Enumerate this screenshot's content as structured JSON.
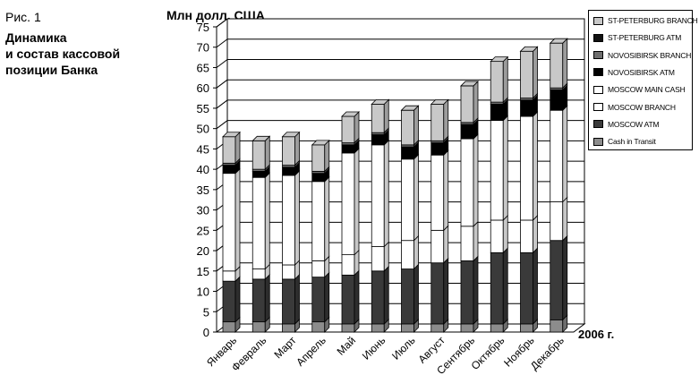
{
  "figure": {
    "label": "Рис. 1",
    "caption": "Динамика\nи состав кассовой\nпозиции Банка"
  },
  "chart_data": {
    "type": "bar",
    "stacked": true,
    "ylabel": "Млн долл. США",
    "xlabel": "2006 г.",
    "ylim": [
      0,
      75
    ],
    "yticks": [
      0,
      5,
      10,
      15,
      20,
      25,
      30,
      35,
      40,
      45,
      50,
      55,
      60,
      65,
      70,
      75
    ],
    "grid": true,
    "legend_position": "top-right",
    "categories": [
      "Январь",
      "Февраль",
      "Март",
      "Апрель",
      "Май",
      "Июнь",
      "Июль",
      "Август",
      "Сентябрь",
      "Октябрь",
      "Ноябрь",
      "Декабрь"
    ],
    "series": [
      {
        "name": "Cash in Transit",
        "color": "#8c8c8c",
        "values": [
          2.5,
          2.5,
          2,
          2.5,
          2,
          2,
          2,
          2,
          2,
          2,
          2,
          3
        ]
      },
      {
        "name": "MOSCOW ATM",
        "color": "#3a3a3a",
        "values": [
          10,
          10.5,
          11,
          11,
          12,
          13,
          13.5,
          15,
          15.5,
          17.5,
          17.5,
          19.5
        ]
      },
      {
        "name": "MOSCOW BRANCH",
        "color": "#ffffff",
        "values": [
          2.5,
          2.5,
          3.5,
          4,
          5,
          6,
          7,
          8,
          8.5,
          8,
          8,
          9.5
        ]
      },
      {
        "name": "MOSCOW MAIN CASH",
        "color": "#ffffff",
        "values": [
          24,
          22.5,
          22,
          19.5,
          25,
          25,
          20,
          18.5,
          21.5,
          24.5,
          25.5,
          22.5
        ]
      },
      {
        "name": "NOVOSIBIRSK ATM",
        "color": "#000000",
        "values": [
          2,
          1.5,
          2,
          2,
          2,
          2.5,
          3,
          3,
          3.5,
          4,
          4,
          5
        ]
      },
      {
        "name": "NOVOSIBIRSK BRANCH",
        "color": "#6e6e6e",
        "values": [
          0.5,
          0.5,
          0.5,
          0.5,
          0.5,
          0.5,
          0.5,
          0.5,
          0.5,
          0.5,
          0.5,
          0.5
        ]
      },
      {
        "name": "ST-PETERBURG ATM",
        "color": "#111111",
        "values": [
          0,
          0,
          0,
          0,
          0,
          0,
          0,
          0,
          0,
          0,
          0,
          0
        ]
      },
      {
        "name": "ST-PETERBURG BRANCH",
        "color": "#c8c8c8",
        "values": [
          6.5,
          7,
          7,
          6.5,
          6.5,
          7,
          8.5,
          9,
          9,
          10,
          11.5,
          11
        ]
      }
    ]
  }
}
